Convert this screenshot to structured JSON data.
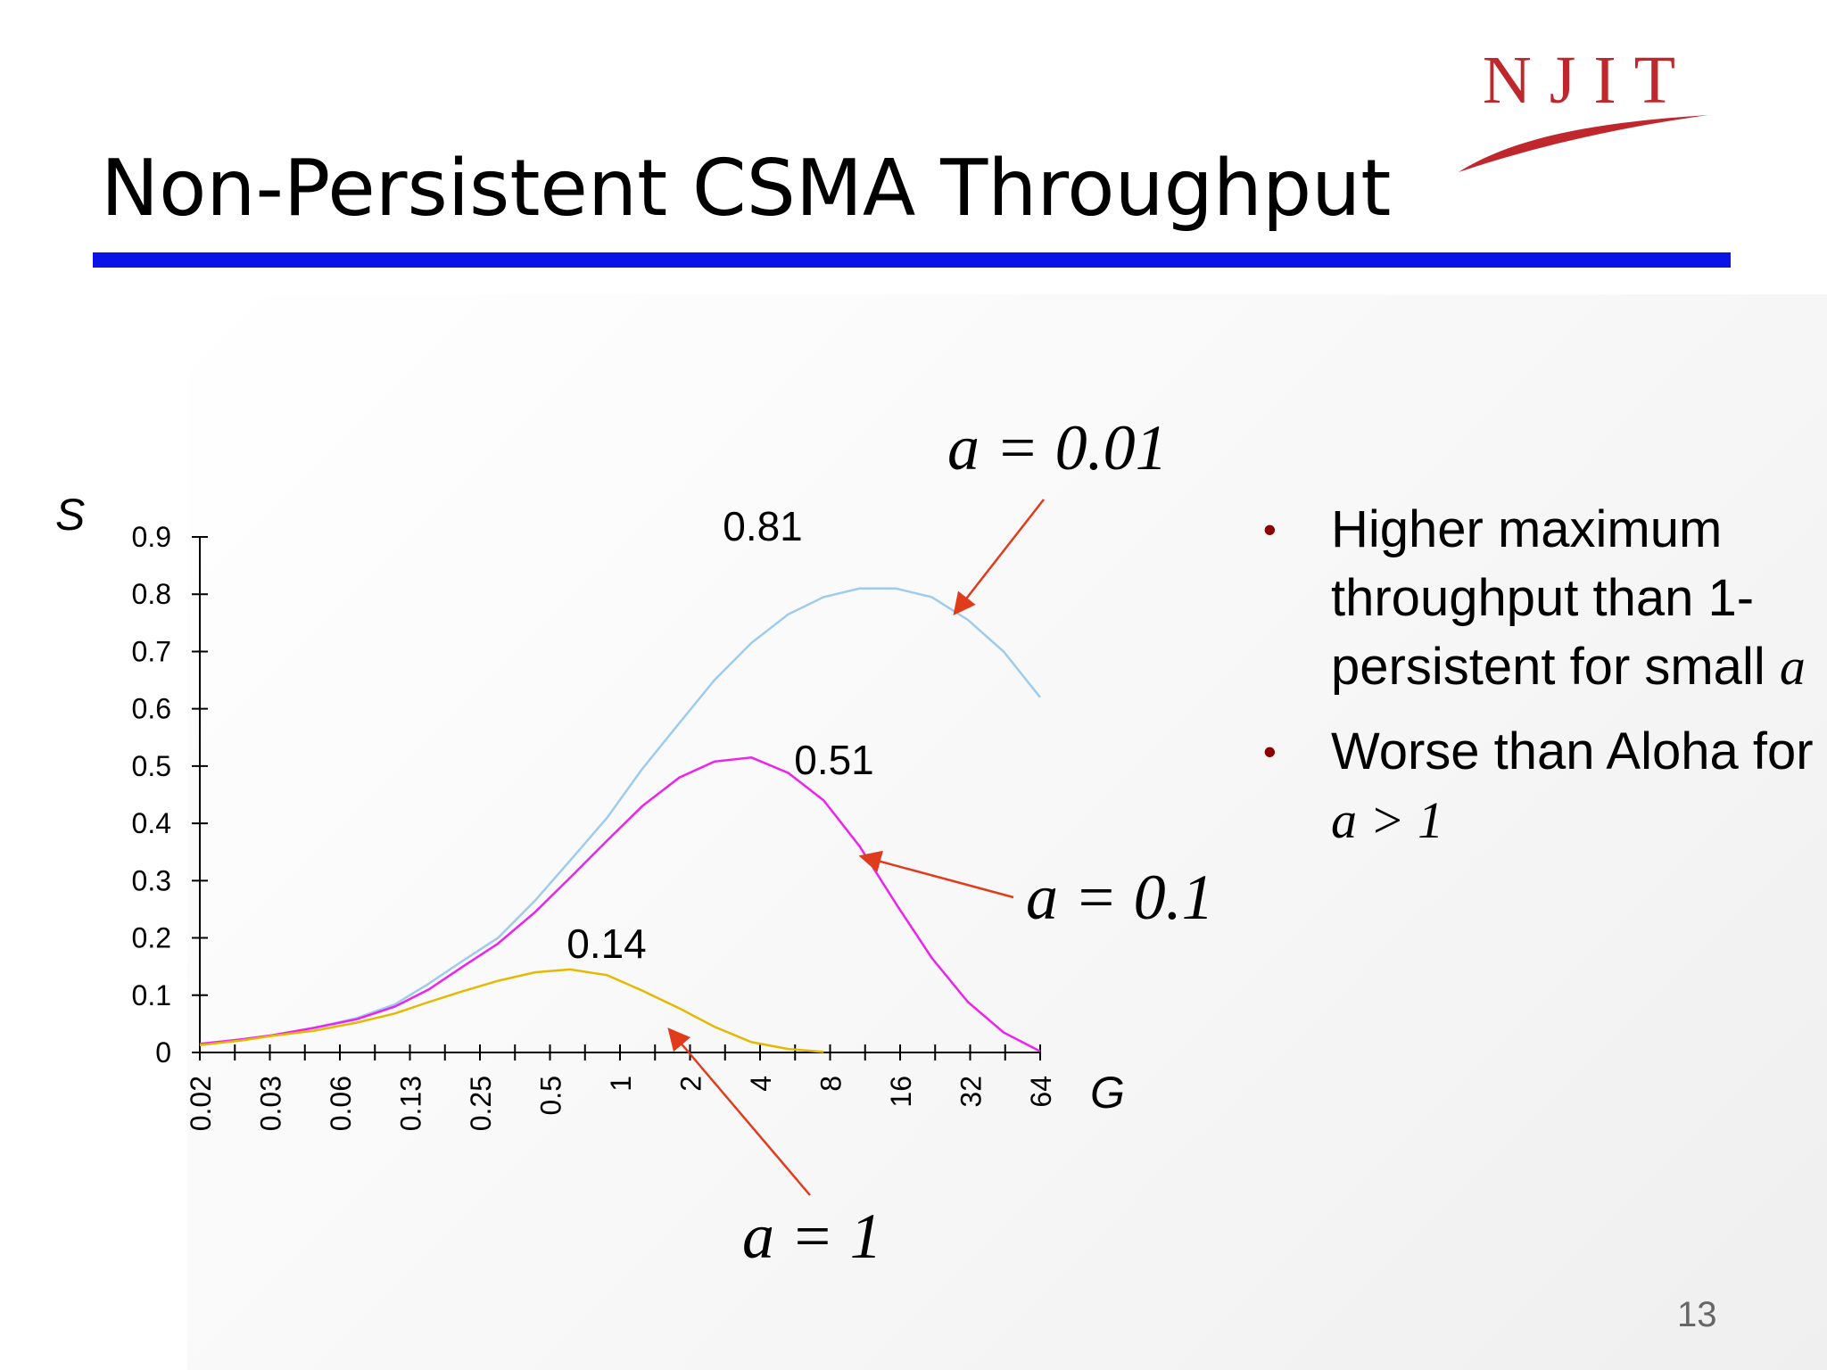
{
  "slide": {
    "title": "Non-Persistent CSMA Throughput",
    "logo_text": "NJIT",
    "page_number": "13",
    "colors": {
      "title_rule": "#0a14e6",
      "logo": "#c0272d",
      "bullet": "#8b0000",
      "arrow": "#e03c1c"
    }
  },
  "bullets": [
    {
      "text": "Higher maximum throughput than 1-persistent for small ",
      "math": "a"
    },
    {
      "text": "Worse than Aloha for ",
      "math": "a > 1"
    }
  ],
  "chart_data": {
    "type": "line",
    "ylabel": "S",
    "xlabel": "G",
    "ylim": [
      0,
      0.9
    ],
    "y_ticks": [
      "0",
      "0.1",
      "0.2",
      "0.3",
      "0.4",
      "0.5",
      "0.6",
      "0.7",
      "0.8",
      "0.9"
    ],
    "x_scale": "log2",
    "x_range": [
      0.02,
      64
    ],
    "x_tick_labels": [
      "0.02",
      "0.03",
      "0.06",
      "0.13",
      "0.25",
      "0.5",
      "1",
      "2",
      "4",
      "8",
      "16",
      "32",
      "64"
    ],
    "grid": false,
    "series": [
      {
        "label": "a = 0.01",
        "color": "#9fcbee",
        "peak_label": "0.81",
        "x": [
          0.02,
          0.03,
          0.04,
          0.06,
          0.09,
          0.13,
          0.18,
          0.25,
          0.35,
          0.5,
          0.7,
          1,
          1.4,
          2,
          2.8,
          4,
          5.7,
          8,
          11.3,
          16,
          22.6,
          32,
          45,
          64
        ],
        "y": [
          0.015,
          0.023,
          0.03,
          0.043,
          0.06,
          0.084,
          0.12,
          0.16,
          0.2,
          0.265,
          0.335,
          0.41,
          0.495,
          0.575,
          0.65,
          0.715,
          0.765,
          0.795,
          0.81,
          0.81,
          0.795,
          0.755,
          0.7,
          0.62
        ]
      },
      {
        "label": "a = 0.1",
        "color": "#ee22ee",
        "peak_label": "0.51",
        "x": [
          0.02,
          0.03,
          0.04,
          0.06,
          0.09,
          0.13,
          0.18,
          0.25,
          0.35,
          0.5,
          0.7,
          1,
          1.4,
          2,
          2.8,
          4,
          5.7,
          8,
          11.3,
          16,
          22.6,
          32,
          45,
          64
        ],
        "y": [
          0.015,
          0.023,
          0.03,
          0.043,
          0.058,
          0.08,
          0.11,
          0.15,
          0.19,
          0.245,
          0.305,
          0.37,
          0.43,
          0.48,
          0.508,
          0.515,
          0.488,
          0.44,
          0.36,
          0.26,
          0.165,
          0.088,
          0.035,
          0.002
        ]
      },
      {
        "label": "a = 1",
        "color": "#e6b800",
        "peak_label": "0.14",
        "x": [
          0.02,
          0.03,
          0.04,
          0.06,
          0.09,
          0.13,
          0.18,
          0.25,
          0.35,
          0.5,
          0.7,
          1,
          1.4,
          2,
          2.8,
          4,
          5.7,
          8
        ],
        "y": [
          0.013,
          0.021,
          0.029,
          0.038,
          0.052,
          0.068,
          0.088,
          0.107,
          0.125,
          0.14,
          0.145,
          0.135,
          0.108,
          0.077,
          0.045,
          0.018,
          0.006,
          0.001
        ]
      }
    ]
  }
}
